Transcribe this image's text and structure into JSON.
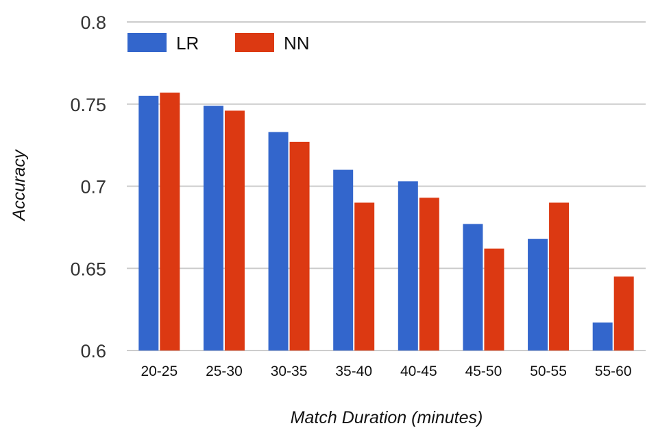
{
  "chart_data": {
    "type": "bar",
    "title": "",
    "xlabel": "Match Duration (minutes)",
    "ylabel": "Accuracy",
    "categories": [
      "20-25",
      "25-30",
      "30-35",
      "35-40",
      "40-45",
      "45-50",
      "50-55",
      "55-60"
    ],
    "ylim": [
      0.6,
      0.8
    ],
    "yticks": [
      "0.6",
      "0.65",
      "0.7",
      "0.75",
      "0.8"
    ],
    "grid": true,
    "legend_position": "top-left",
    "series": [
      {
        "name": "LR",
        "color": "#3366cc",
        "values": [
          0.755,
          0.749,
          0.733,
          0.71,
          0.703,
          0.677,
          0.668,
          0.617
        ]
      },
      {
        "name": "NN",
        "color": "#dc3912",
        "values": [
          0.757,
          0.746,
          0.727,
          0.69,
          0.693,
          0.662,
          0.69,
          0.645
        ]
      }
    ]
  }
}
